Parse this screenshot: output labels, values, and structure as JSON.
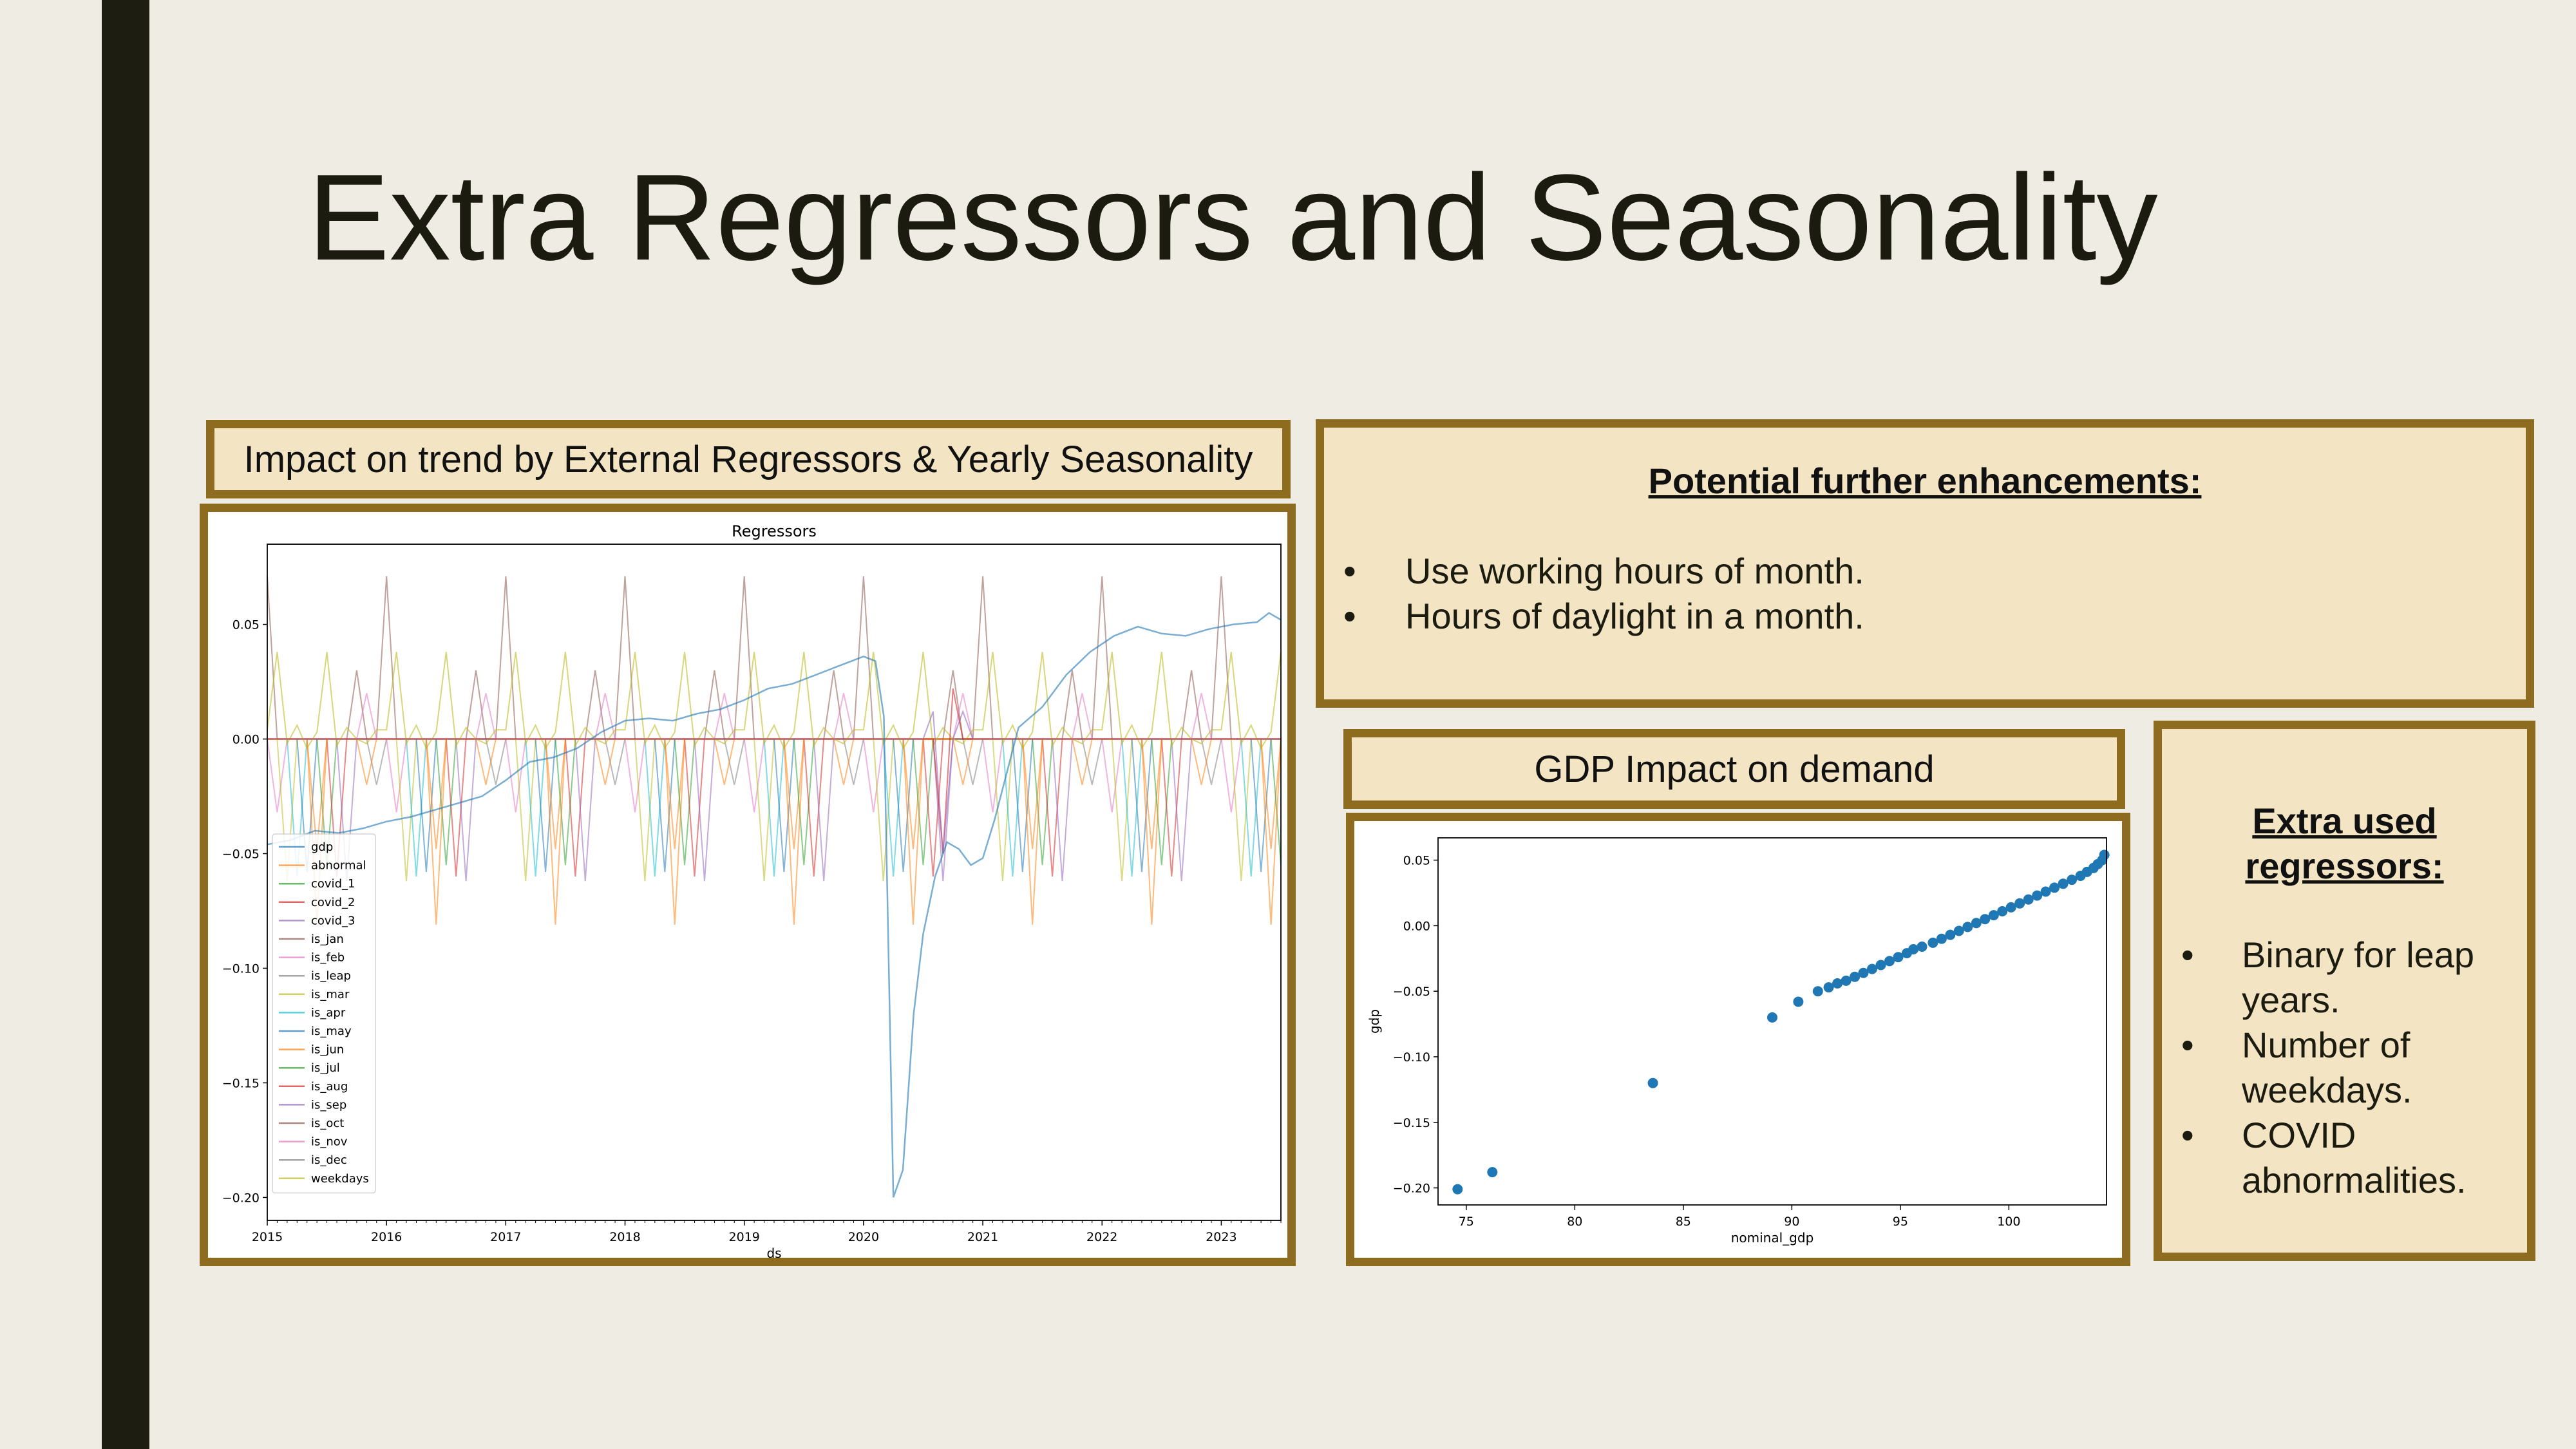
{
  "slide": {
    "title": "Extra Regressors and Seasonality"
  },
  "left_panel": {
    "caption": "Impact on trend by External Regressors & Yearly Seasonality"
  },
  "enhancements": {
    "heading": "Potential further enhancements:",
    "items": [
      "Use working hours of month.",
      "Hours of daylight in a month."
    ]
  },
  "gdp_panel": {
    "caption": "GDP Impact on demand"
  },
  "regressors_panel": {
    "heading": "Extra used regressors:",
    "items": [
      "Binary for leap years.",
      "Number of weekdays.",
      "COVID abnormalities."
    ]
  },
  "bullet_glyph": "•",
  "chart_data": [
    {
      "type": "line",
      "title": "Regressors",
      "xlabel": "ds",
      "ylabel": "",
      "xlim": [
        2015,
        2023.5
      ],
      "ylim": [
        -0.21,
        0.085
      ],
      "x_ticks": [
        "2015",
        "2016",
        "2017",
        "2018",
        "2019",
        "2020",
        "2021",
        "2022",
        "2023"
      ],
      "y_ticks": [
        "0.05",
        "0.00",
        "−0.05",
        "−0.10",
        "−0.15",
        "−0.20"
      ],
      "legend_position": "lower-left",
      "series": [
        {
          "name": "gdp",
          "color": "#1f77b4"
        },
        {
          "name": "abnormal",
          "color": "#ff7f0e"
        },
        {
          "name": "covid_1",
          "color": "#2ca02c"
        },
        {
          "name": "covid_2",
          "color": "#d62728"
        },
        {
          "name": "covid_3",
          "color": "#9467bd"
        },
        {
          "name": "is_jan",
          "color": "#8c564b"
        },
        {
          "name": "is_feb",
          "color": "#e377c2"
        },
        {
          "name": "is_leap",
          "color": "#7f7f7f"
        },
        {
          "name": "is_mar",
          "color": "#bcbd22"
        },
        {
          "name": "is_apr",
          "color": "#17becf"
        },
        {
          "name": "is_may",
          "color": "#1f77b4"
        },
        {
          "name": "is_jun",
          "color": "#ff7f0e"
        },
        {
          "name": "is_jul",
          "color": "#2ca02c"
        },
        {
          "name": "is_aug",
          "color": "#d62728"
        },
        {
          "name": "is_sep",
          "color": "#9467bd"
        },
        {
          "name": "is_oct",
          "color": "#8c564b"
        },
        {
          "name": "is_nov",
          "color": "#e377c2"
        },
        {
          "name": "is_dec",
          "color": "#7f7f7f"
        },
        {
          "name": "weekdays",
          "color": "#bcbd22"
        }
      ],
      "gdp_trace": [
        [
          2015.0,
          -0.046
        ],
        [
          2015.2,
          -0.044
        ],
        [
          2015.4,
          -0.04
        ],
        [
          2015.6,
          -0.041
        ],
        [
          2015.8,
          -0.039
        ],
        [
          2016.0,
          -0.036
        ],
        [
          2016.2,
          -0.034
        ],
        [
          2016.4,
          -0.031
        ],
        [
          2016.6,
          -0.028
        ],
        [
          2016.8,
          -0.025
        ],
        [
          2017.0,
          -0.018
        ],
        [
          2017.2,
          -0.01
        ],
        [
          2017.4,
          -0.008
        ],
        [
          2017.6,
          -0.004
        ],
        [
          2017.8,
          0.003
        ],
        [
          2018.0,
          0.008
        ],
        [
          2018.2,
          0.009
        ],
        [
          2018.4,
          0.008
        ],
        [
          2018.6,
          0.011
        ],
        [
          2018.8,
          0.013
        ],
        [
          2019.0,
          0.017
        ],
        [
          2019.2,
          0.022
        ],
        [
          2019.4,
          0.024
        ],
        [
          2019.6,
          0.028
        ],
        [
          2019.8,
          0.032
        ],
        [
          2020.0,
          0.036
        ],
        [
          2020.1,
          0.034
        ],
        [
          2020.17,
          0.01
        ],
        [
          2020.25,
          -0.2
        ],
        [
          2020.33,
          -0.188
        ],
        [
          2020.42,
          -0.12
        ],
        [
          2020.5,
          -0.085
        ],
        [
          2020.6,
          -0.06
        ],
        [
          2020.7,
          -0.045
        ],
        [
          2020.8,
          -0.048
        ],
        [
          2020.9,
          -0.055
        ],
        [
          2021.0,
          -0.052
        ],
        [
          2021.1,
          -0.035
        ],
        [
          2021.2,
          -0.015
        ],
        [
          2021.3,
          0.005
        ],
        [
          2021.5,
          0.014
        ],
        [
          2021.7,
          0.028
        ],
        [
          2021.9,
          0.038
        ],
        [
          2022.1,
          0.045
        ],
        [
          2022.3,
          0.049
        ],
        [
          2022.5,
          0.046
        ],
        [
          2022.7,
          0.045
        ],
        [
          2022.9,
          0.048
        ],
        [
          2023.1,
          0.05
        ],
        [
          2023.3,
          0.051
        ],
        [
          2023.4,
          0.055
        ],
        [
          2023.5,
          0.052
        ]
      ]
    },
    {
      "type": "scatter",
      "title": "",
      "xlabel": "nominal_gdp",
      "ylabel": "gdp",
      "xlim": [
        73.7,
        104.5
      ],
      "ylim": [
        -0.213,
        0.067
      ],
      "x_ticks": [
        "75",
        "80",
        "85",
        "90",
        "95",
        "100"
      ],
      "y_ticks": [
        "0.05",
        "0.00",
        "−0.05",
        "−0.10",
        "−0.15",
        "−0.20"
      ],
      "points": [
        [
          74.6,
          -0.201
        ],
        [
          76.2,
          -0.188
        ],
        [
          83.6,
          -0.12
        ],
        [
          89.1,
          -0.07
        ],
        [
          90.3,
          -0.058
        ],
        [
          91.2,
          -0.05
        ],
        [
          91.7,
          -0.047
        ],
        [
          92.1,
          -0.044
        ],
        [
          92.5,
          -0.042
        ],
        [
          92.9,
          -0.039
        ],
        [
          93.3,
          -0.036
        ],
        [
          93.7,
          -0.033
        ],
        [
          94.1,
          -0.03
        ],
        [
          94.5,
          -0.027
        ],
        [
          94.9,
          -0.024
        ],
        [
          95.3,
          -0.021
        ],
        [
          95.6,
          -0.018
        ],
        [
          96.0,
          -0.016
        ],
        [
          96.5,
          -0.013
        ],
        [
          96.9,
          -0.01
        ],
        [
          97.3,
          -0.007
        ],
        [
          97.7,
          -0.004
        ],
        [
          98.1,
          -0.001
        ],
        [
          98.5,
          0.002
        ],
        [
          98.9,
          0.005
        ],
        [
          99.3,
          0.008
        ],
        [
          99.7,
          0.011
        ],
        [
          100.1,
          0.014
        ],
        [
          100.5,
          0.017
        ],
        [
          100.9,
          0.02
        ],
        [
          101.3,
          0.023
        ],
        [
          101.7,
          0.026
        ],
        [
          102.1,
          0.029
        ],
        [
          102.5,
          0.032
        ],
        [
          102.9,
          0.035
        ],
        [
          103.3,
          0.038
        ],
        [
          103.6,
          0.041
        ],
        [
          103.9,
          0.044
        ],
        [
          104.1,
          0.047
        ],
        [
          104.3,
          0.05
        ],
        [
          104.4,
          0.054
        ]
      ]
    }
  ]
}
